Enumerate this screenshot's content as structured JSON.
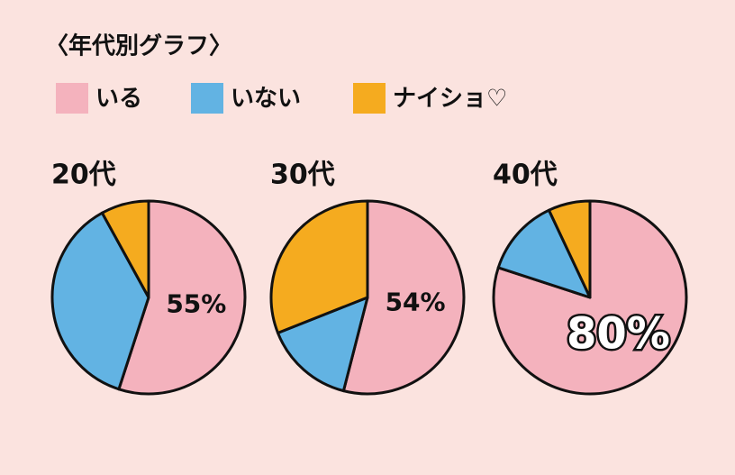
{
  "title": "〈年代別グラフ〉",
  "chart_data": [
    {
      "type": "pie",
      "title": "20代",
      "categories": [
        "いる",
        "いない",
        "ナイショ♡"
      ],
      "values": [
        55,
        37,
        8
      ],
      "value_labels": [
        "55%",
        null,
        null
      ],
      "colors": [
        "#f4b2bd",
        "#62b3e3",
        "#f5ab1f"
      ]
    },
    {
      "type": "pie",
      "title": "30代",
      "categories": [
        "いる",
        "いない",
        "ナイショ♡"
      ],
      "values": [
        54,
        15,
        31
      ],
      "value_labels": [
        "54%",
        null,
        null
      ],
      "colors": [
        "#f4b2bd",
        "#62b3e3",
        "#f5ab1f"
      ]
    },
    {
      "type": "pie",
      "title": "40代",
      "categories": [
        "いる",
        "いない",
        "ナイショ♡"
      ],
      "values": [
        80,
        13,
        7
      ],
      "value_labels": [
        "80%",
        null,
        null
      ],
      "colors": [
        "#f4b2bd",
        "#62b3e3",
        "#f5ab1f"
      ]
    }
  ]
}
